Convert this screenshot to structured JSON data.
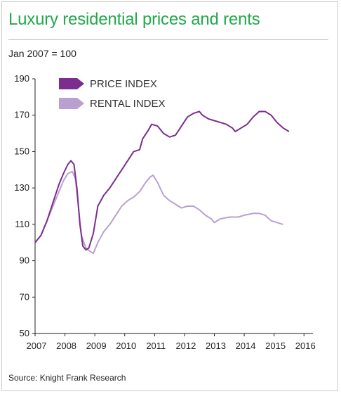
{
  "title": "Luxury residential prices and rents",
  "subtitle": "Jan 2007 = 100",
  "source": "Source: Knight Frank Research",
  "chart_data": {
    "type": "line",
    "title": "Luxury residential prices and rents",
    "ylim": [
      50,
      190
    ],
    "yticks": [
      50,
      70,
      90,
      110,
      130,
      150,
      170,
      190
    ],
    "xlim": [
      2007,
      2016.3
    ],
    "xticks": [
      "2007",
      "2008",
      "2009",
      "2010",
      "2011",
      "2012",
      "2013",
      "2014",
      "2015",
      "2016"
    ],
    "grid": false,
    "legend_position": "top-left",
    "series": [
      {
        "name": "PRICE INDEX",
        "color": "#7b2e8e",
        "points": [
          [
            2007.0,
            100
          ],
          [
            2007.2,
            104
          ],
          [
            2007.4,
            112
          ],
          [
            2007.6,
            122
          ],
          [
            2007.8,
            132
          ],
          [
            2007.95,
            138
          ],
          [
            2008.1,
            143
          ],
          [
            2008.2,
            145
          ],
          [
            2008.3,
            143
          ],
          [
            2008.4,
            130
          ],
          [
            2008.5,
            110
          ],
          [
            2008.6,
            98
          ],
          [
            2008.7,
            96
          ],
          [
            2008.8,
            97
          ],
          [
            2008.95,
            105
          ],
          [
            2009.1,
            120
          ],
          [
            2009.3,
            126
          ],
          [
            2009.5,
            130
          ],
          [
            2009.7,
            135
          ],
          [
            2009.9,
            140
          ],
          [
            2010.1,
            145
          ],
          [
            2010.3,
            150
          ],
          [
            2010.5,
            151
          ],
          [
            2010.6,
            157
          ],
          [
            2010.8,
            162
          ],
          [
            2010.9,
            165
          ],
          [
            2011.1,
            164
          ],
          [
            2011.3,
            160
          ],
          [
            2011.5,
            158
          ],
          [
            2011.7,
            159
          ],
          [
            2011.9,
            164
          ],
          [
            2012.1,
            169
          ],
          [
            2012.3,
            171
          ],
          [
            2012.5,
            172
          ],
          [
            2012.6,
            170
          ],
          [
            2012.8,
            168
          ],
          [
            2013.0,
            167
          ],
          [
            2013.2,
            166
          ],
          [
            2013.4,
            165
          ],
          [
            2013.6,
            163
          ],
          [
            2013.7,
            161
          ],
          [
            2013.9,
            163
          ],
          [
            2014.1,
            165
          ],
          [
            2014.3,
            169
          ],
          [
            2014.5,
            172
          ],
          [
            2014.7,
            172
          ],
          [
            2014.9,
            170
          ],
          [
            2015.1,
            166
          ],
          [
            2015.3,
            163
          ],
          [
            2015.5,
            161
          ]
        ]
      },
      {
        "name": "RENTAL INDEX",
        "color": "#b9a0d0",
        "points": [
          [
            2007.0,
            100
          ],
          [
            2007.2,
            104
          ],
          [
            2007.4,
            112
          ],
          [
            2007.6,
            120
          ],
          [
            2007.8,
            128
          ],
          [
            2007.95,
            134
          ],
          [
            2008.1,
            138
          ],
          [
            2008.25,
            139
          ],
          [
            2008.35,
            135
          ],
          [
            2008.45,
            120
          ],
          [
            2008.55,
            104
          ],
          [
            2008.7,
            97
          ],
          [
            2008.85,
            95
          ],
          [
            2008.95,
            94
          ],
          [
            2009.1,
            100
          ],
          [
            2009.3,
            106
          ],
          [
            2009.5,
            110
          ],
          [
            2009.7,
            115
          ],
          [
            2009.9,
            120
          ],
          [
            2010.1,
            123
          ],
          [
            2010.3,
            125
          ],
          [
            2010.5,
            128
          ],
          [
            2010.7,
            133
          ],
          [
            2010.85,
            136
          ],
          [
            2010.95,
            137
          ],
          [
            2011.1,
            133
          ],
          [
            2011.3,
            126
          ],
          [
            2011.5,
            123
          ],
          [
            2011.7,
            121
          ],
          [
            2011.9,
            119
          ],
          [
            2012.1,
            120
          ],
          [
            2012.3,
            120
          ],
          [
            2012.5,
            118
          ],
          [
            2012.7,
            115
          ],
          [
            2012.9,
            113
          ],
          [
            2013.0,
            111
          ],
          [
            2013.2,
            113
          ],
          [
            2013.5,
            114
          ],
          [
            2013.8,
            114
          ],
          [
            2014.0,
            115
          ],
          [
            2014.3,
            116
          ],
          [
            2014.5,
            116
          ],
          [
            2014.7,
            115
          ],
          [
            2014.9,
            112
          ],
          [
            2015.1,
            111
          ],
          [
            2015.3,
            110
          ]
        ]
      }
    ]
  }
}
